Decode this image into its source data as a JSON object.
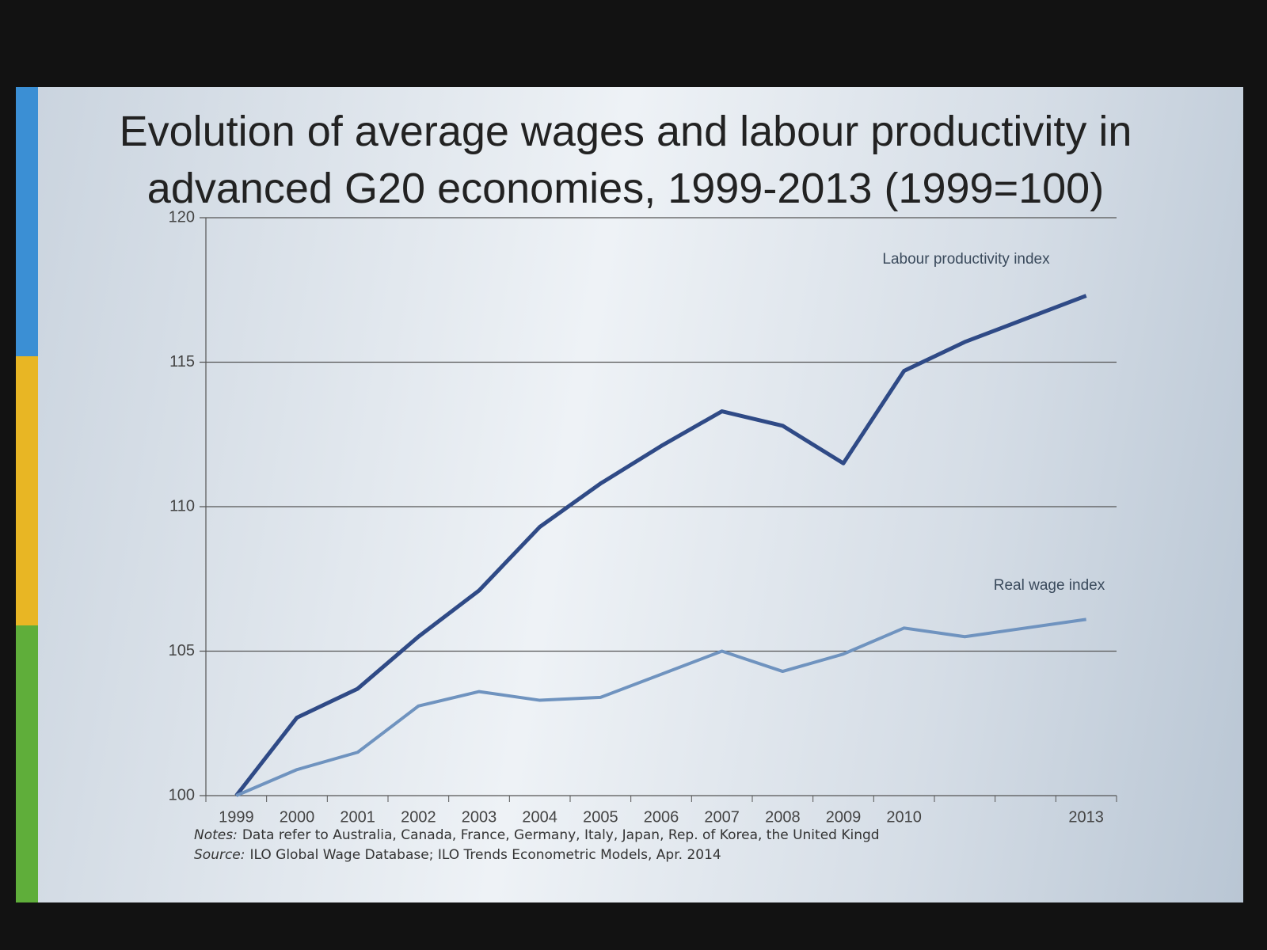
{
  "chart_data": {
    "type": "line",
    "title": "Evolution of average wages and labour productivity in advanced G20 economies, 1999-2013 (1999=100)",
    "categories": [
      "1999",
      "2000",
      "2001",
      "2002",
      "2003",
      "2004",
      "2005",
      "2006",
      "2007",
      "2008",
      "2009",
      "2010",
      null,
      null,
      "2013"
    ],
    "series": [
      {
        "name": "Labour productivity index",
        "color": "#2f4a86",
        "values": [
          100,
          102.7,
          103.7,
          105.5,
          107.1,
          109.3,
          110.8,
          112.1,
          113.3,
          112.8,
          111.5,
          114.7,
          115.7,
          116.5,
          117.3
        ]
      },
      {
        "name": "Real wage index",
        "color": "#6f93bf",
        "values": [
          100,
          100.9,
          101.5,
          103.1,
          103.6,
          103.3,
          103.4,
          104.2,
          105.0,
          104.3,
          104.9,
          105.8,
          105.5,
          105.8,
          106.1
        ]
      }
    ],
    "ylim": [
      100,
      120
    ],
    "yticks": [
      100,
      105,
      110,
      115,
      120
    ],
    "grid": true,
    "notes_label": "Notes:",
    "notes": "Data refer to Australia, Canada, France, Germany, Italy, Japan, Rep. of Korea, the United Kingd",
    "source_label": "Source:",
    "source": "ILO Global Wage Database; ILO Trends Econometric Models, Apr. 2014"
  }
}
